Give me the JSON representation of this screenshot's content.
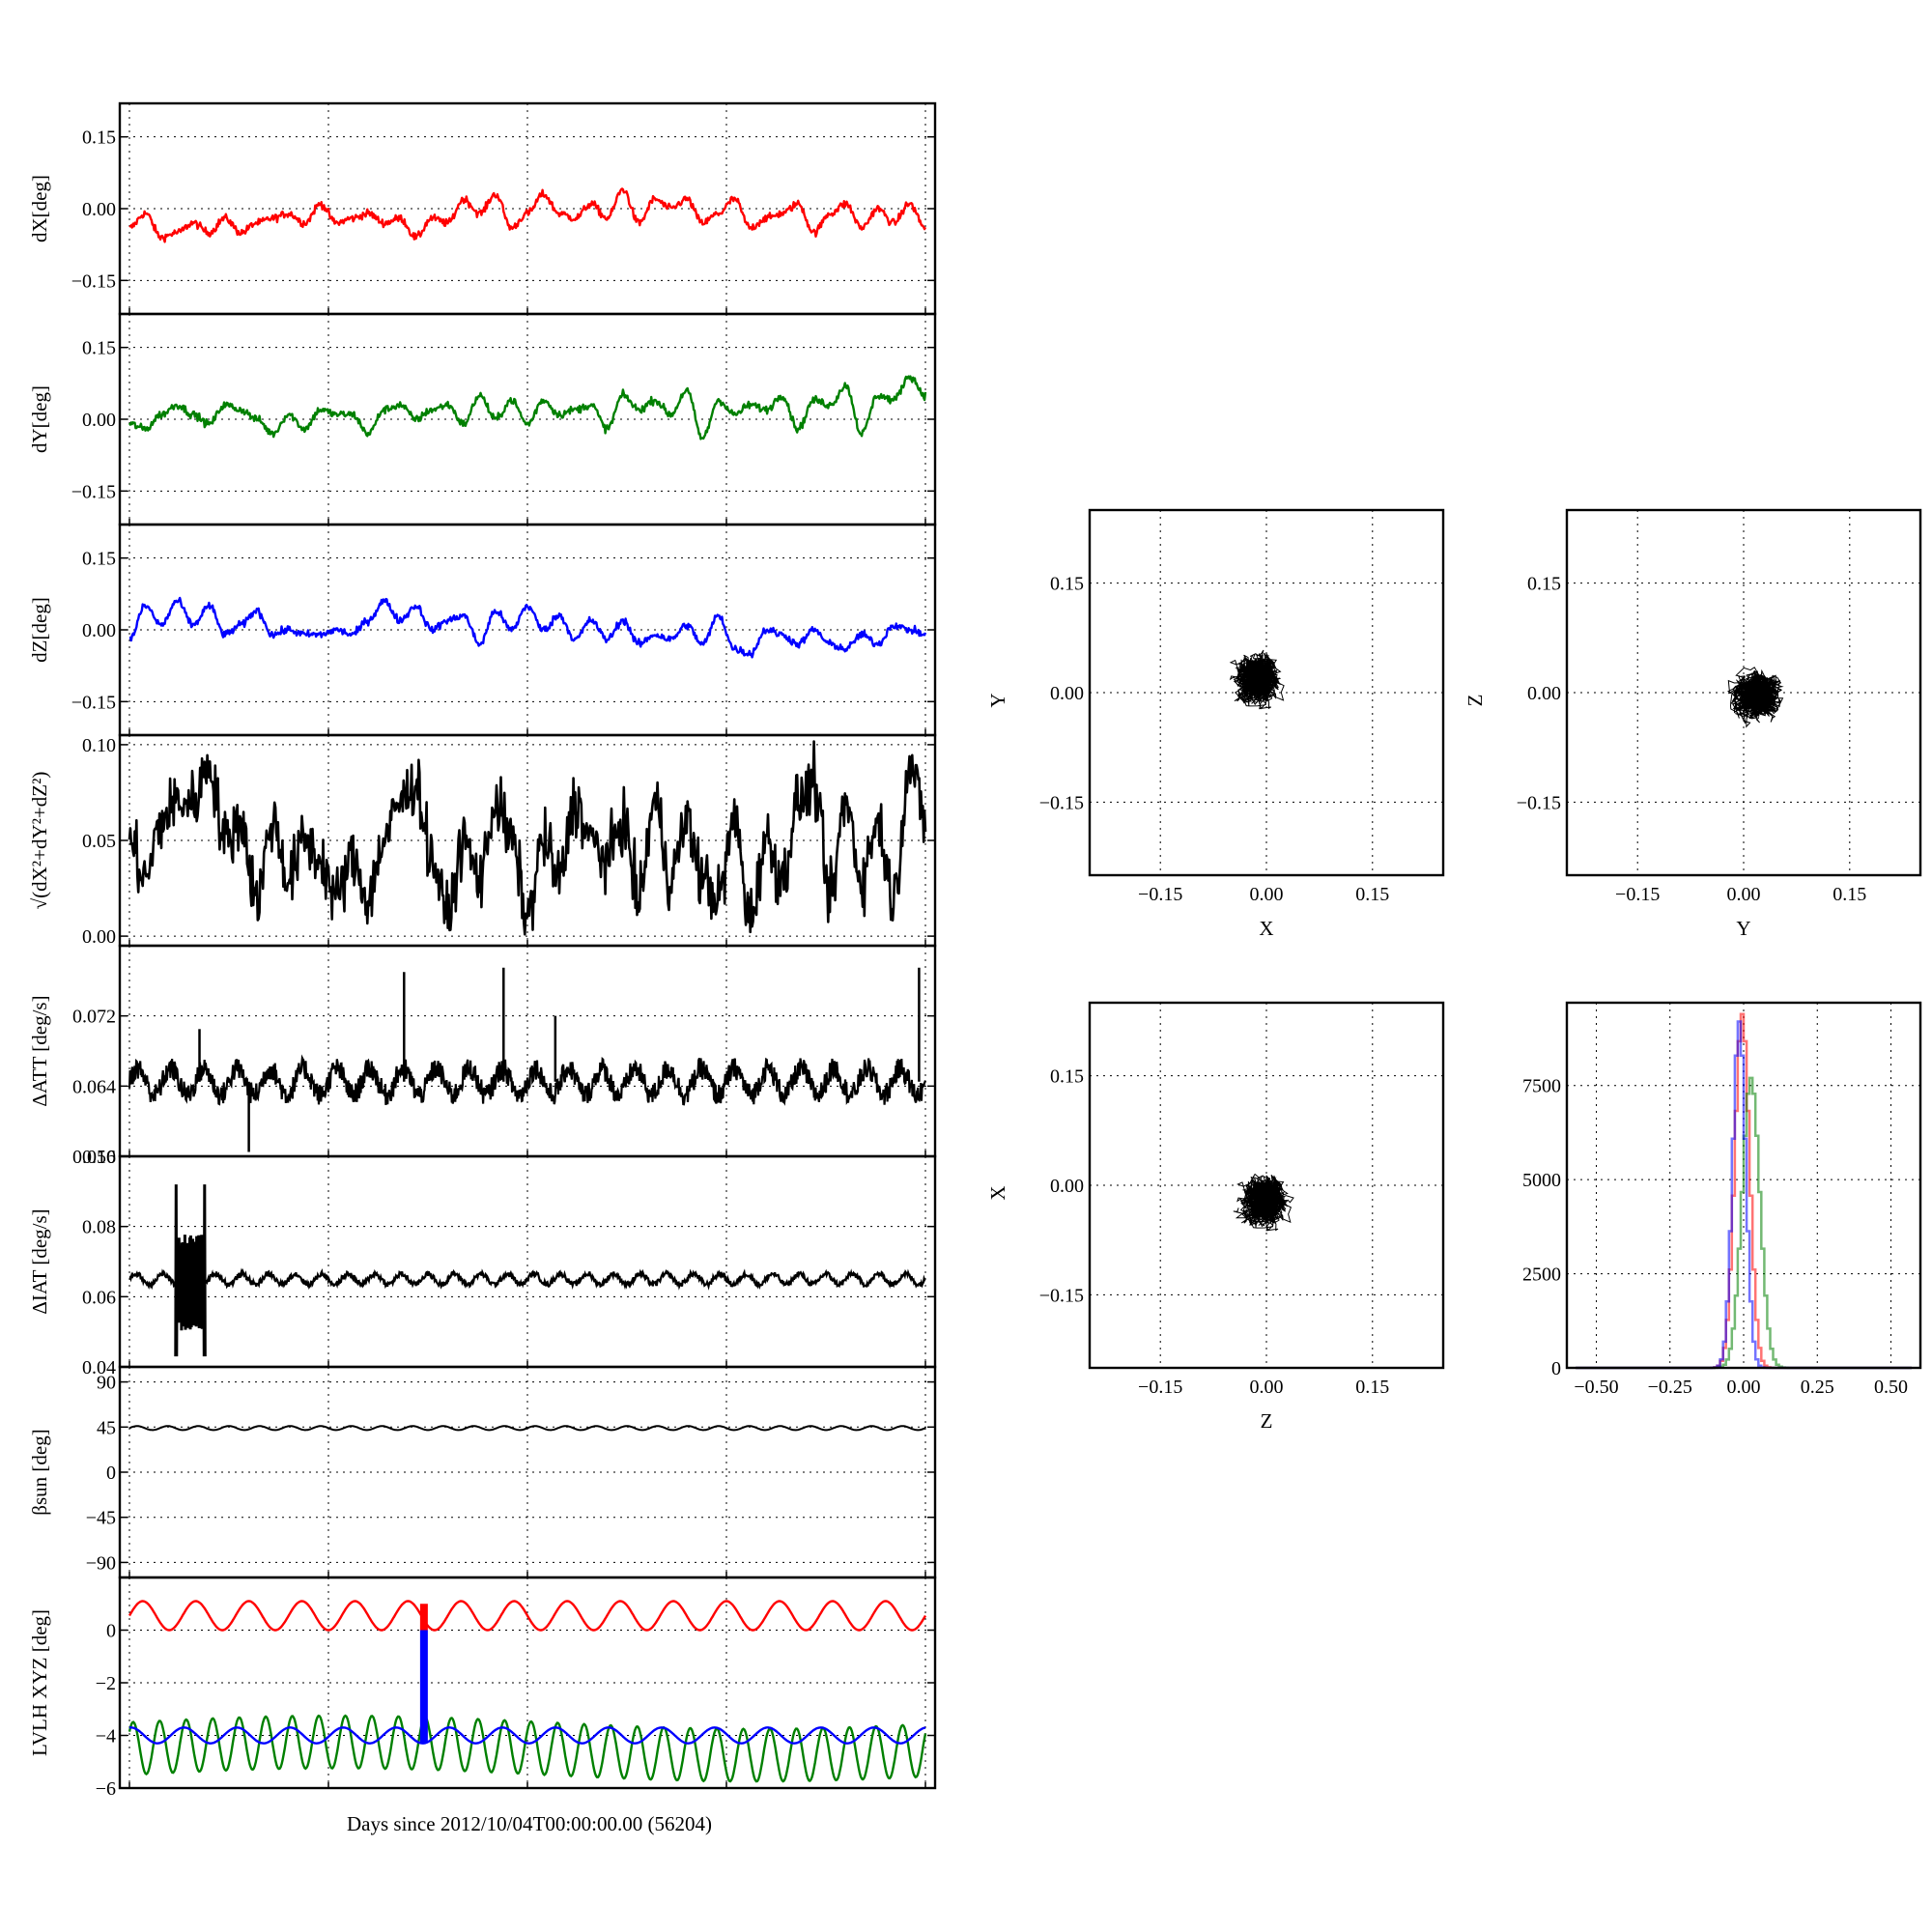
{
  "xlabel": "Days since 2012/10/04T00:00:00.00 (56204)",
  "colors": {
    "x": "#ff0000",
    "y": "#008000",
    "z": "#0000ff",
    "k": "#000000"
  },
  "chart_data": [
    {
      "type": "line",
      "ylabel": "dX[deg]",
      "ylim": [
        -0.22,
        0.22
      ],
      "xlim": [
        0,
        1
      ],
      "yticks": [
        -0.15,
        0.0,
        0.15
      ],
      "ytick_labels": [
        "−0.15",
        "0.00",
        "0.15"
      ],
      "series": [
        {
          "color": "#ff0000",
          "x": [
            0,
            0.02,
            0.04,
            0.06,
            0.08,
            0.1,
            0.12,
            0.14,
            0.16,
            0.18,
            0.2,
            0.22,
            0.24,
            0.26,
            0.28,
            0.3,
            0.32,
            0.34,
            0.36,
            0.38,
            0.4,
            0.42,
            0.44,
            0.46,
            0.48,
            0.5,
            0.52,
            0.54,
            0.56,
            0.58,
            0.6,
            0.62,
            0.64,
            0.66,
            0.68,
            0.7,
            0.72,
            0.74,
            0.76,
            0.78,
            0.8,
            0.82,
            0.84,
            0.86,
            0.88,
            0.9,
            0.92,
            0.94,
            0.96,
            0.98,
            1.0
          ],
          "values": [
            -0.04,
            -0.01,
            -0.06,
            -0.05,
            -0.03,
            -0.05,
            -0.02,
            -0.05,
            -0.03,
            -0.02,
            -0.01,
            -0.03,
            0.01,
            -0.03,
            -0.02,
            -0.01,
            -0.03,
            -0.02,
            -0.06,
            -0.02,
            -0.03,
            0.02,
            -0.01,
            0.03,
            -0.04,
            -0.01,
            0.03,
            -0.01,
            -0.02,
            0.01,
            -0.02,
            0.04,
            -0.03,
            0.02,
            0.0,
            0.02,
            -0.03,
            -0.01,
            0.02,
            -0.04,
            -0.02,
            -0.01,
            0.01,
            -0.05,
            -0.01,
            0.01,
            -0.04,
            0.0,
            -0.03,
            0.01,
            -0.04
          ]
        }
      ]
    },
    {
      "type": "line",
      "ylabel": "dY[deg]",
      "ylim": [
        -0.22,
        0.22
      ],
      "xlim": [
        0,
        1
      ],
      "yticks": [
        -0.15,
        0.0,
        0.15
      ],
      "ytick_labels": [
        "−0.15",
        "0.00",
        "0.15"
      ],
      "series": [
        {
          "color": "#008000",
          "x": [
            0,
            0.02,
            0.04,
            0.06,
            0.08,
            0.1,
            0.12,
            0.14,
            0.16,
            0.18,
            0.2,
            0.22,
            0.24,
            0.26,
            0.28,
            0.3,
            0.32,
            0.34,
            0.36,
            0.38,
            0.4,
            0.42,
            0.44,
            0.46,
            0.48,
            0.5,
            0.52,
            0.54,
            0.56,
            0.58,
            0.6,
            0.62,
            0.64,
            0.66,
            0.68,
            0.7,
            0.72,
            0.74,
            0.76,
            0.78,
            0.8,
            0.82,
            0.84,
            0.86,
            0.88,
            0.9,
            0.92,
            0.94,
            0.96,
            0.98,
            1.0
          ],
          "values": [
            -0.01,
            -0.02,
            0.01,
            0.03,
            0.01,
            -0.01,
            0.03,
            0.02,
            0.0,
            -0.03,
            0.01,
            -0.02,
            0.02,
            0.01,
            0.01,
            -0.03,
            0.02,
            0.03,
            0.0,
            0.02,
            0.03,
            -0.01,
            0.05,
            0.0,
            0.04,
            -0.01,
            0.04,
            0.01,
            0.02,
            0.03,
            -0.02,
            0.05,
            0.02,
            0.04,
            0.01,
            0.06,
            -0.04,
            0.04,
            0.01,
            0.03,
            0.02,
            0.05,
            -0.02,
            0.04,
            0.03,
            0.07,
            -0.03,
            0.05,
            0.04,
            0.09,
            0.05
          ]
        }
      ]
    },
    {
      "type": "line",
      "ylabel": "dZ[deg]",
      "ylim": [
        -0.22,
        0.22
      ],
      "xlim": [
        0,
        1
      ],
      "yticks": [
        -0.15,
        0.0,
        0.15
      ],
      "ytick_labels": [
        "−0.15",
        "0.00",
        "0.15"
      ],
      "series": [
        {
          "color": "#0000ff",
          "x": [
            0,
            0.02,
            0.04,
            0.06,
            0.08,
            0.1,
            0.12,
            0.14,
            0.16,
            0.18,
            0.2,
            0.22,
            0.24,
            0.26,
            0.28,
            0.3,
            0.32,
            0.34,
            0.36,
            0.38,
            0.4,
            0.42,
            0.44,
            0.46,
            0.48,
            0.5,
            0.52,
            0.54,
            0.56,
            0.58,
            0.6,
            0.62,
            0.64,
            0.66,
            0.68,
            0.7,
            0.72,
            0.74,
            0.76,
            0.78,
            0.8,
            0.82,
            0.84,
            0.86,
            0.88,
            0.9,
            0.92,
            0.94,
            0.96,
            0.98,
            1.0
          ],
          "values": [
            -0.02,
            0.05,
            0.01,
            0.06,
            0.01,
            0.05,
            -0.01,
            0.01,
            0.04,
            -0.01,
            0.0,
            -0.01,
            -0.01,
            0.0,
            -0.01,
            0.02,
            0.06,
            0.02,
            0.05,
            0.0,
            0.02,
            0.03,
            -0.03,
            0.04,
            0.0,
            0.05,
            0.0,
            0.03,
            -0.02,
            0.02,
            -0.02,
            0.02,
            -0.03,
            -0.01,
            -0.02,
            0.01,
            -0.03,
            0.03,
            -0.04,
            -0.05,
            0.0,
            -0.01,
            -0.03,
            0.0,
            -0.03,
            -0.04,
            -0.01,
            -0.03,
            0.01,
            0.0,
            -0.01
          ]
        }
      ]
    },
    {
      "type": "line",
      "ylabel": "√(dX²+dY²+dZ²)",
      "ylim": [
        -0.005,
        0.105
      ],
      "xlim": [
        0,
        1
      ],
      "yticks": [
        0.0,
        0.05,
        0.1
      ],
      "ytick_labels": [
        "0.00",
        "0.05",
        "0.10"
      ],
      "series": [
        {
          "color": "#000000",
          "x": [
            0,
            0.02,
            0.04,
            0.06,
            0.08,
            0.1,
            0.12,
            0.14,
            0.16,
            0.18,
            0.2,
            0.22,
            0.24,
            0.26,
            0.28,
            0.3,
            0.32,
            0.34,
            0.36,
            0.38,
            0.4,
            0.42,
            0.44,
            0.46,
            0.48,
            0.5,
            0.52,
            0.54,
            0.56,
            0.58,
            0.6,
            0.62,
            0.64,
            0.66,
            0.68,
            0.7,
            0.72,
            0.74,
            0.76,
            0.78,
            0.8,
            0.82,
            0.84,
            0.86,
            0.88,
            0.9,
            0.92,
            0.94,
            0.96,
            0.98,
            1.0
          ],
          "values": [
            0.05,
            0.03,
            0.06,
            0.07,
            0.07,
            0.09,
            0.05,
            0.06,
            0.02,
            0.06,
            0.03,
            0.05,
            0.04,
            0.02,
            0.04,
            0.02,
            0.05,
            0.07,
            0.08,
            0.04,
            0.01,
            0.05,
            0.03,
            0.07,
            0.05,
            0.01,
            0.05,
            0.03,
            0.07,
            0.05,
            0.04,
            0.06,
            0.02,
            0.07,
            0.03,
            0.06,
            0.03,
            0.02,
            0.06,
            0.01,
            0.05,
            0.03,
            0.07,
            0.08,
            0.02,
            0.07,
            0.03,
            0.06,
            0.02,
            0.09,
            0.06
          ]
        }
      ]
    },
    {
      "type": "line",
      "ylabel": "ΔATT [deg/s]",
      "ylim": [
        0.056,
        0.08
      ],
      "xlim": [
        0,
        1
      ],
      "yticks": [
        0.056,
        0.064,
        0.072
      ],
      "ytick_labels": [
        "0.056",
        "0.064",
        "0.072"
      ],
      "series": [
        {
          "color": "#000000",
          "base": 0.0645,
          "amplitude": 0.0015,
          "cycles": 24,
          "spikes": [
            {
              "x": 0.088,
              "value": 0.0705
            },
            {
              "x": 0.15,
              "value": 0.0565
            },
            {
              "x": 0.345,
              "value": 0.077
            },
            {
              "x": 0.47,
              "value": 0.0775
            },
            {
              "x": 0.535,
              "value": 0.072
            },
            {
              "x": 0.992,
              "value": 0.0775
            }
          ]
        }
      ]
    },
    {
      "type": "line",
      "ylabel": "ΔIAT [deg/s]",
      "ylim": [
        0.04,
        0.1
      ],
      "xlim": [
        0,
        1
      ],
      "yticks": [
        0.04,
        0.06,
        0.08,
        0.1
      ],
      "ytick_labels": [
        "0.04",
        "0.06",
        "0.08",
        "0.10"
      ],
      "series": [
        {
          "color": "#000000",
          "base": 0.065,
          "amplitude": 0.0015,
          "cycles": 30,
          "burst": {
            "x_start": 0.058,
            "x_end": 0.095,
            "low": 0.043,
            "high": 0.092
          }
        }
      ]
    },
    {
      "type": "line",
      "ylabel": "βsun [deg]",
      "ylim": [
        -105,
        105
      ],
      "xlim": [
        0,
        1
      ],
      "yticks": [
        -90,
        -45,
        0,
        45,
        90
      ],
      "ytick_labels": [
        "−90",
        "−45",
        "0",
        "45",
        "90"
      ],
      "series": [
        {
          "color": "#000000",
          "base": 44,
          "amplitude": 2,
          "cycles": 26
        }
      ]
    },
    {
      "type": "line",
      "ylabel": "LVLH XYZ [deg]",
      "ylim": [
        -6,
        2
      ],
      "xlim": [
        0,
        1
      ],
      "yticks": [
        -6,
        -4,
        -2,
        0
      ],
      "ytick_labels": [
        "−6",
        "−4",
        "−2",
        "0"
      ],
      "series": [
        {
          "color": "#ff0000",
          "base": 0.55,
          "amplitude": 0.55,
          "cycles": 15
        },
        {
          "color": "#008000",
          "base": -4.5,
          "amplitude": 1.0,
          "cycles": 30
        },
        {
          "color": "#0000ff",
          "base": -4.0,
          "amplitude": 0.3,
          "cycles": 15
        }
      ],
      "event": {
        "x": 0.37,
        "red_top": 1.0,
        "red_bottom": 0.0,
        "blue_bottom": -4.3
      }
    },
    {
      "type": "scatter",
      "xlabel": "X",
      "ylabel": "Y",
      "xlim": [
        -0.25,
        0.25
      ],
      "ylim": [
        -0.25,
        0.25
      ],
      "ticks": [
        -0.15,
        0.0,
        0.15
      ],
      "tick_labels": [
        "−0.15",
        "0.00",
        "0.15"
      ],
      "cloud": {
        "center": [
          -0.01,
          0.02
        ],
        "spread": [
          0.025,
          0.025
        ]
      }
    },
    {
      "type": "scatter",
      "xlabel": "Y",
      "ylabel": "Z",
      "xlim": [
        -0.25,
        0.25
      ],
      "ylim": [
        -0.25,
        0.25
      ],
      "ticks": [
        -0.15,
        0.0,
        0.15
      ],
      "tick_labels": [
        "−0.15",
        "0.00",
        "0.15"
      ],
      "cloud": {
        "center": [
          0.02,
          0.0
        ],
        "spread": [
          0.03,
          0.025
        ]
      }
    },
    {
      "type": "scatter",
      "xlabel": "Z",
      "ylabel": "X",
      "xlim": [
        -0.25,
        0.25
      ],
      "ylim": [
        -0.25,
        0.25
      ],
      "ticks": [
        -0.15,
        0.0,
        0.15
      ],
      "tick_labels": [
        "−0.15",
        "0.00",
        "0.15"
      ],
      "cloud": {
        "center": [
          0.0,
          -0.02
        ],
        "spread": [
          0.025,
          0.025
        ]
      }
    },
    {
      "type": "histogram",
      "xlim": [
        -0.6,
        0.6
      ],
      "ylim": [
        0,
        9700
      ],
      "xticks": [
        -0.5,
        -0.25,
        0.0,
        0.25,
        0.5
      ],
      "xtick_labels": [
        "−0.50",
        "−0.25",
        "0.00",
        "0.25",
        "0.50"
      ],
      "yticks": [
        0,
        2500,
        5000,
        7500
      ],
      "ytick_labels": [
        "0",
        "2500",
        "5000",
        "7500"
      ],
      "series": [
        {
          "color": "#ff0000",
          "center": -0.01,
          "width": 0.025,
          "peak": 9400
        },
        {
          "color": "#008000",
          "center": 0.02,
          "width": 0.03,
          "peak": 7700
        },
        {
          "color": "#0000ff",
          "center": -0.02,
          "width": 0.022,
          "peak": 9200
        }
      ]
    }
  ]
}
